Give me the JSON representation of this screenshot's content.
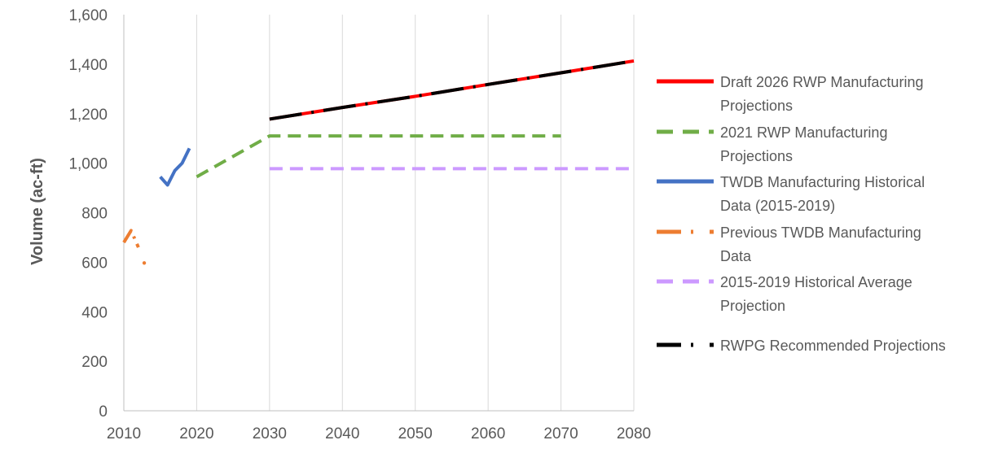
{
  "chart_data": {
    "type": "line",
    "ylabel": "Volume (ac-ft)",
    "xlabel": "",
    "title": "",
    "xlim": [
      2010,
      2080
    ],
    "ylim": [
      0,
      1600
    ],
    "xticks": [
      "2010",
      "2020",
      "2030",
      "2040",
      "2050",
      "2060",
      "2070",
      "2080"
    ],
    "yticks": [
      "0",
      "200",
      "400",
      "600",
      "800",
      "1,000",
      "1,200",
      "1,400",
      "1,600"
    ],
    "xtick_values": [
      2010,
      2020,
      2030,
      2040,
      2050,
      2060,
      2070,
      2080
    ],
    "ytick_values": [
      0,
      200,
      400,
      600,
      800,
      1000,
      1200,
      1400,
      1600
    ],
    "grid": "vertical",
    "legend_position": "right",
    "series": [
      {
        "name": "Draft 2026 RWP Manufacturing Projections",
        "legend_lines": [
          "Draft 2026 RWP Manufacturing",
          "Projections"
        ],
        "color": "#ff0000",
        "style": "solid",
        "x": [
          2030,
          2040,
          2050,
          2060,
          2070,
          2080
        ],
        "y": [
          1178,
          1225,
          1270,
          1318,
          1365,
          1413
        ]
      },
      {
        "name": "2021 RWP Manufacturing Projections",
        "legend_lines": [
          "2021 RWP Manufacturing",
          "Projections"
        ],
        "color": "#70ad47",
        "style": "dashed",
        "x": [
          2020,
          2030,
          2040,
          2050,
          2060,
          2070
        ],
        "y": [
          945,
          1110,
          1110,
          1110,
          1110,
          1110
        ]
      },
      {
        "name": "TWDB Manufacturing Historical Data (2015-2019)",
        "legend_lines": [
          "TWDB Manufacturing Historical",
          "Data (2015-2019)"
        ],
        "color": "#4472c4",
        "style": "solid",
        "x": [
          2015,
          2016,
          2017,
          2018,
          2019
        ],
        "y": [
          945,
          912,
          970,
          1000,
          1060
        ]
      },
      {
        "name": "Previous TWDB Manufacturing Data",
        "legend_lines": [
          "Previous TWDB Manufacturing",
          "Data"
        ],
        "color": "#ed7d31",
        "style": "dashdot",
        "x": [
          2010,
          2011,
          2012
        ],
        "y": [
          680,
          728,
          660
        ],
        "points": [
          {
            "x": 2012.8,
            "y": 597
          }
        ]
      },
      {
        "name": "2015-2019 Historical Average Projection",
        "legend_lines": [
          "2015-2019 Historical Average",
          "Projection"
        ],
        "color": "#cc99ff",
        "style": "dashed",
        "x": [
          2030,
          2040,
          2050,
          2060,
          2070,
          2080
        ],
        "y": [
          978,
          978,
          978,
          978,
          978,
          978
        ]
      },
      {
        "name": "RWPG Recommended Projections",
        "legend_lines": [
          "RWPG Recommended Projections"
        ],
        "color": "#000000",
        "style": "dashdot",
        "x": [
          2030,
          2040,
          2050,
          2060,
          2070,
          2080
        ],
        "y": [
          1178,
          1225,
          1270,
          1318,
          1365,
          1413
        ]
      }
    ]
  }
}
